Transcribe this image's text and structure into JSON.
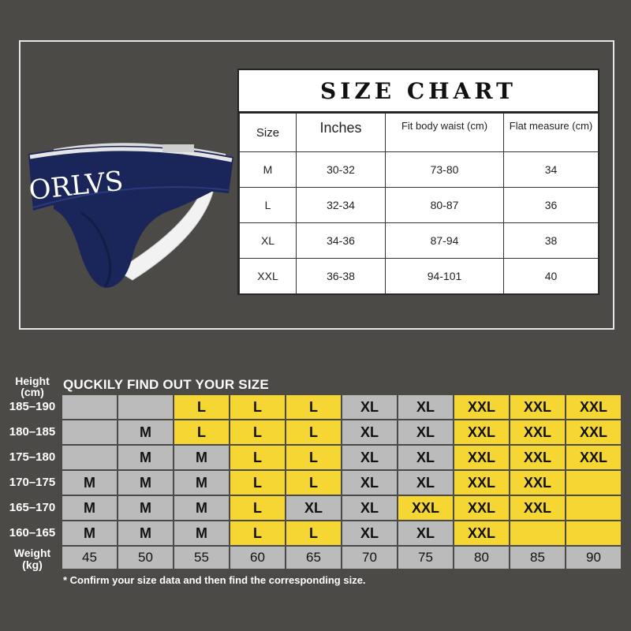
{
  "brand": "ORLVS",
  "waistband_text": "ORLVS",
  "colors": {
    "background": "#4b4a47",
    "yellow": "#f5d632",
    "gray": "#bbbbbb",
    "navy": "#1a2659"
  },
  "size_chart": {
    "title": "SIZE CHART",
    "headers": [
      "Size",
      "Inches",
      "Fit body waist (cm)",
      "Flat measure (cm)"
    ],
    "rows": [
      [
        "M",
        "30-32",
        "73-80",
        "34"
      ],
      [
        "L",
        "32-34",
        "80-87",
        "36"
      ],
      [
        "XL",
        "34-36",
        "87-94",
        "38"
      ],
      [
        "XXL",
        "36-38",
        "94-101",
        "40"
      ]
    ]
  },
  "finder": {
    "title": "QUCKILY FIND OUT YOUR SIZE",
    "height_label_line1": "Height",
    "height_label_line2": "(cm)",
    "weight_label_line1": "Weight",
    "weight_label_line2": "(kg)",
    "heights": [
      "185–190",
      "180–185",
      "175–180",
      "170–175",
      "165–170",
      "160–165"
    ],
    "weights": [
      "45",
      "50",
      "55",
      "60",
      "65",
      "70",
      "75",
      "80",
      "85",
      "90"
    ],
    "grid": [
      [
        [
          "",
          "g"
        ],
        [
          "",
          "g"
        ],
        [
          "L",
          "y"
        ],
        [
          "L",
          "y"
        ],
        [
          "L",
          "y"
        ],
        [
          "XL",
          "g"
        ],
        [
          "XL",
          "g"
        ],
        [
          "XXL",
          "y"
        ],
        [
          "XXL",
          "y"
        ],
        [
          "XXL",
          "y"
        ]
      ],
      [
        [
          "",
          "g"
        ],
        [
          "M",
          "g"
        ],
        [
          "L",
          "y"
        ],
        [
          "L",
          "y"
        ],
        [
          "L",
          "y"
        ],
        [
          "XL",
          "g"
        ],
        [
          "XL",
          "g"
        ],
        [
          "XXL",
          "y"
        ],
        [
          "XXL",
          "y"
        ],
        [
          "XXL",
          "y"
        ]
      ],
      [
        [
          "",
          "g"
        ],
        [
          "M",
          "g"
        ],
        [
          "M",
          "g"
        ],
        [
          "L",
          "y"
        ],
        [
          "L",
          "y"
        ],
        [
          "XL",
          "g"
        ],
        [
          "XL",
          "g"
        ],
        [
          "XXL",
          "y"
        ],
        [
          "XXL",
          "y"
        ],
        [
          "XXL",
          "y"
        ]
      ],
      [
        [
          "M",
          "g"
        ],
        [
          "M",
          "g"
        ],
        [
          "M",
          "g"
        ],
        [
          "L",
          "y"
        ],
        [
          "L",
          "y"
        ],
        [
          "XL",
          "g"
        ],
        [
          "XL",
          "g"
        ],
        [
          "XXL",
          "y"
        ],
        [
          "XXL",
          "y"
        ],
        [
          "",
          "y"
        ]
      ],
      [
        [
          "M",
          "g"
        ],
        [
          "M",
          "g"
        ],
        [
          "M",
          "g"
        ],
        [
          "L",
          "y"
        ],
        [
          "XL",
          "g"
        ],
        [
          "XL",
          "g"
        ],
        [
          "XXL",
          "y"
        ],
        [
          "XXL",
          "y"
        ],
        [
          "XXL",
          "y"
        ],
        [
          "",
          "y"
        ]
      ],
      [
        [
          "M",
          "g"
        ],
        [
          "M",
          "g"
        ],
        [
          "M",
          "g"
        ],
        [
          "L",
          "y"
        ],
        [
          "L",
          "y"
        ],
        [
          "XL",
          "g"
        ],
        [
          "XL",
          "g"
        ],
        [
          "XXL",
          "y"
        ],
        [
          "",
          "y"
        ],
        [
          "",
          "y"
        ]
      ]
    ],
    "note": "* Confirm your size data and then find the corresponding size."
  }
}
